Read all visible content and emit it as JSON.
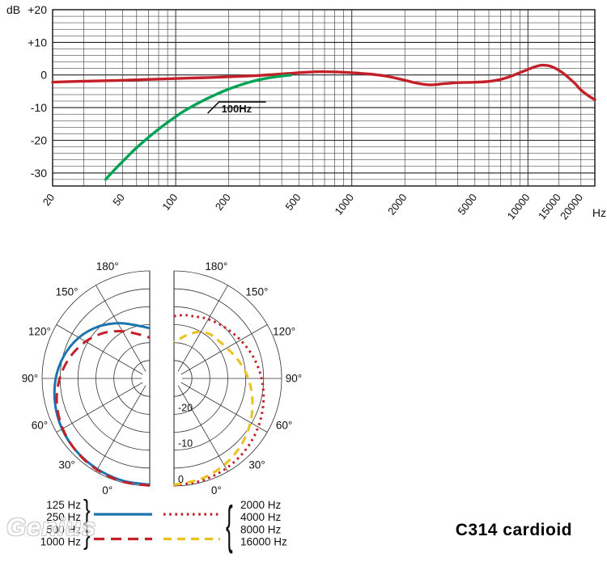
{
  "page": {
    "title": "C314 cardioid",
    "watermark": "Genius"
  },
  "colors": {
    "red": "#c3202a",
    "green": "#00a254",
    "blue": "#1b74ae",
    "yellow": "#edc11d",
    "grid": "#222222",
    "text": "#111111"
  },
  "chart_data": [
    {
      "type": "line",
      "name": "frequency-response",
      "y_unit_label": "dB",
      "x_unit_label": "Hz",
      "x_scale": "log",
      "xlim": [
        20,
        24000
      ],
      "ylim": [
        -34,
        20
      ],
      "y_minor_step_db": 2,
      "y_major_ticks": [
        {
          "v": 20,
          "label": "+20"
        },
        {
          "v": 10,
          "label": "+10"
        },
        {
          "v": 0,
          "label": "0"
        },
        {
          "v": -10,
          "label": "-10"
        },
        {
          "v": -20,
          "label": "-20"
        },
        {
          "v": -30,
          "label": "-30"
        }
      ],
      "x_tick_labels": [
        {
          "v": 20,
          "label": "20"
        },
        {
          "v": 50,
          "label": "50"
        },
        {
          "v": 100,
          "label": "100"
        },
        {
          "v": 200,
          "label": "200"
        },
        {
          "v": 500,
          "label": "500"
        },
        {
          "v": 1000,
          "label": "1000"
        },
        {
          "v": 2000,
          "label": "2000"
        },
        {
          "v": 5000,
          "label": "5000"
        },
        {
          "v": 10000,
          "label": "10000"
        },
        {
          "v": 15000,
          "label": "15000"
        },
        {
          "v": 20000,
          "label": "20000"
        }
      ],
      "annotation": {
        "label": "100Hz",
        "type": "low-cut-filter",
        "at_hz": 200,
        "at_db": -8
      },
      "series": [
        {
          "name": "response-curve",
          "color": "red",
          "style": "solid",
          "points": [
            [
              20,
              -2.2
            ],
            [
              30,
              -1.9
            ],
            [
              45,
              -1.7
            ],
            [
              65,
              -1.4
            ],
            [
              90,
              -1.15
            ],
            [
              120,
              -0.95
            ],
            [
              160,
              -0.75
            ],
            [
              210,
              -0.5
            ],
            [
              270,
              -0.25
            ],
            [
              340,
              0.05
            ],
            [
              420,
              0.4
            ],
            [
              520,
              0.75
            ],
            [
              650,
              1.0
            ],
            [
              800,
              0.95
            ],
            [
              1000,
              0.7
            ],
            [
              1250,
              0.3
            ],
            [
              1550,
              -0.3
            ],
            [
              1900,
              -1.3
            ],
            [
              2300,
              -2.4
            ],
            [
              2750,
              -3.0
            ],
            [
              3300,
              -2.7
            ],
            [
              4000,
              -2.35
            ],
            [
              4800,
              -2.25
            ],
            [
              5800,
              -2.05
            ],
            [
              6800,
              -1.5
            ],
            [
              7800,
              -0.6
            ],
            [
              8800,
              0.5
            ],
            [
              9800,
              1.5
            ],
            [
              10800,
              2.4
            ],
            [
              12000,
              3.0
            ],
            [
              13200,
              2.8
            ],
            [
              14500,
              1.9
            ],
            [
              15800,
              0.6
            ],
            [
              17000,
              -0.8
            ],
            [
              18500,
              -2.6
            ],
            [
              20000,
              -4.6
            ],
            [
              22000,
              -6.3
            ],
            [
              24000,
              -7.6
            ]
          ]
        },
        {
          "name": "low-cut-100hz-curve",
          "color": "green",
          "style": "solid",
          "points": [
            [
              40,
              -32
            ],
            [
              45,
              -29
            ],
            [
              51,
              -26
            ],
            [
              58,
              -23
            ],
            [
              66,
              -20.3
            ],
            [
              75,
              -17.8
            ],
            [
              86,
              -15.3
            ],
            [
              98,
              -13.1
            ],
            [
              112,
              -11
            ],
            [
              130,
              -9
            ],
            [
              150,
              -7.3
            ],
            [
              172,
              -5.8
            ],
            [
              198,
              -4.4
            ],
            [
              228,
              -3.2
            ],
            [
              262,
              -2.2
            ],
            [
              300,
              -1.4
            ],
            [
              345,
              -0.8
            ],
            [
              395,
              -0.35
            ],
            [
              450,
              -0.05
            ]
          ]
        }
      ]
    },
    {
      "type": "polar",
      "name": "polar-pattern",
      "zero_angle_position": "bottom",
      "rings_db": [
        0,
        -5,
        -10,
        -15,
        -20,
        -25
      ],
      "ring_labels": [
        {
          "v": -20,
          "label": "-20"
        },
        {
          "v": -10,
          "label": "-10"
        },
        {
          "v": 0,
          "label": "0"
        }
      ],
      "angle_labels": [
        {
          "deg": 0,
          "label": "0°"
        },
        {
          "deg": 30,
          "label": "30°"
        },
        {
          "deg": 60,
          "label": "60°"
        },
        {
          "deg": 90,
          "label": "90°"
        },
        {
          "deg": 120,
          "label": "120°"
        },
        {
          "deg": 150,
          "label": "150°"
        },
        {
          "deg": 180,
          "label": "180°"
        }
      ],
      "halves": [
        {
          "side": "left",
          "series": [
            {
              "name": "125-250hz",
              "color": "blue",
              "style": "solid",
              "points": [
                [
                  0,
                  -0.35
                ],
                [
                  15,
                  -0.5
                ],
                [
                  30,
                  -0.8
                ],
                [
                  45,
                  -1.2
                ],
                [
                  60,
                  -1.8
                ],
                [
                  75,
                  -2.7
                ],
                [
                  90,
                  -3.8
                ],
                [
                  105,
                  -5.3
                ],
                [
                  120,
                  -7.2
                ],
                [
                  135,
                  -9.6
                ],
                [
                  150,
                  -12.2
                ],
                [
                  165,
                  -14.6
                ],
                [
                  180,
                  -16
                ]
              ]
            },
            {
              "name": "500-1000hz",
              "color": "red",
              "style": "long-dash",
              "points": [
                [
                  0,
                  -0.1
                ],
                [
                  15,
                  -0.25
                ],
                [
                  30,
                  -0.6
                ],
                [
                  45,
                  -1.15
                ],
                [
                  60,
                  -2.0
                ],
                [
                  75,
                  -3.2
                ],
                [
                  90,
                  -4.9
                ],
                [
                  105,
                  -7.0
                ],
                [
                  120,
                  -9.4
                ],
                [
                  135,
                  -12.0
                ],
                [
                  150,
                  -14.8
                ],
                [
                  165,
                  -17.2
                ],
                [
                  180,
                  -18.6
                ]
              ]
            }
          ]
        },
        {
          "side": "right",
          "series": [
            {
              "name": "2000-4000hz",
              "color": "red",
              "style": "dotted",
              "points": [
                [
                  0,
                  -0.15
                ],
                [
                  15,
                  -0.45
                ],
                [
                  30,
                  -1.0
                ],
                [
                  45,
                  -1.8
                ],
                [
                  60,
                  -2.9
                ],
                [
                  75,
                  -4.2
                ],
                [
                  90,
                  -5.6
                ],
                [
                  105,
                  -7.1
                ],
                [
                  120,
                  -8.6
                ],
                [
                  135,
                  -9.9
                ],
                [
                  150,
                  -10.9
                ],
                [
                  162,
                  -11.8
                ],
                [
                  171,
                  -12.1
                ],
                [
                  180,
                  -12.6
                ]
              ]
            },
            {
              "name": "8000-16000hz",
              "color": "yellow",
              "style": "dash",
              "points": [
                [
                  0,
                  -0.3
                ],
                [
                  15,
                  -1.0
                ],
                [
                  30,
                  -2.1
                ],
                [
                  45,
                  -3.6
                ],
                [
                  60,
                  -5.4
                ],
                [
                  75,
                  -7.4
                ],
                [
                  90,
                  -9.3
                ],
                [
                  105,
                  -11.3
                ],
                [
                  120,
                  -13.0
                ],
                [
                  132,
                  -13.8
                ],
                [
                  141,
                  -14.1
                ],
                [
                  152,
                  -15.3
                ],
                [
                  163,
                  -17.3
                ],
                [
                  172,
                  -18.9
                ],
                [
                  180,
                  -19.8
                ]
              ]
            }
          ]
        }
      ]
    }
  ],
  "legend": {
    "left_groups": [
      {
        "labels": [
          "125 Hz",
          "250 Hz"
        ],
        "color": "blue",
        "style": "solid"
      },
      {
        "labels": [
          "500 Hz",
          "1000 Hz"
        ],
        "color": "red",
        "style": "long-dash"
      }
    ],
    "right_groups": [
      {
        "labels": [
          "2000 Hz",
          "4000 Hz"
        ],
        "color": "red",
        "style": "dotted"
      },
      {
        "labels": [
          "8000 Hz",
          "16000 Hz"
        ],
        "color": "yellow",
        "style": "dash"
      }
    ]
  }
}
